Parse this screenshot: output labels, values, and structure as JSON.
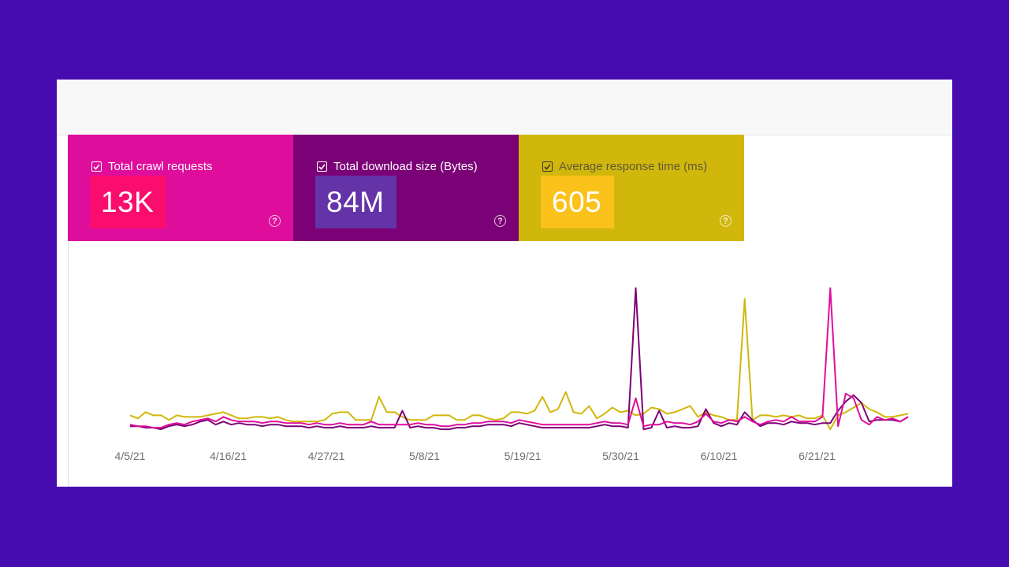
{
  "cards": [
    {
      "label": "Total crawl requests",
      "value": "13K",
      "checked": true
    },
    {
      "label": "Total download size (Bytes)",
      "value": "84M",
      "checked": true
    },
    {
      "label": "Average response time (ms)",
      "value": "605",
      "checked": true
    }
  ],
  "help_glyph": "?",
  "colors": {
    "background": "#460cb0",
    "requests": "#df0d9c",
    "download": "#7b0276",
    "response": "#d1b70b"
  },
  "chart_data": {
    "type": "line",
    "x_tick_labels": [
      "4/5/21",
      "4/16/21",
      "4/27/21",
      "5/8/21",
      "5/19/21",
      "5/30/21",
      "6/10/21",
      "6/21/21"
    ],
    "x_range": [
      "4/5/21",
      "7/1/21"
    ],
    "y_range": [
      0,
      100
    ],
    "grid": false,
    "legend": "top cards",
    "series": [
      {
        "name": "Total crawl requests",
        "color": "#df0d9c",
        "values": [
          7,
          6,
          6,
          5,
          5,
          7,
          8,
          7,
          9,
          10,
          11,
          9,
          12,
          10,
          9,
          9,
          9,
          8,
          9,
          9,
          8,
          8,
          8,
          7,
          8,
          7,
          7,
          8,
          7,
          7,
          7,
          9,
          7,
          7,
          7,
          7,
          7,
          8,
          7,
          7,
          6,
          6,
          7,
          7,
          8,
          8,
          9,
          9,
          9,
          8,
          10,
          9,
          8,
          7,
          7,
          7,
          7,
          7,
          7,
          7,
          8,
          9,
          8,
          8,
          7,
          24,
          6,
          7,
          7,
          9,
          8,
          8,
          7,
          9,
          14,
          9,
          8,
          10,
          9,
          12,
          9,
          7,
          9,
          10,
          9,
          12,
          9,
          9,
          9,
          12,
          95,
          6,
          27,
          24,
          10,
          7,
          12,
          10,
          11,
          9,
          12
        ]
      },
      {
        "name": "Total download size (Bytes)",
        "color": "#7b0276",
        "values": [
          6,
          6,
          5,
          5,
          4,
          6,
          7,
          6,
          7,
          9,
          10,
          7,
          9,
          7,
          8,
          7,
          7,
          6,
          7,
          7,
          6,
          6,
          6,
          5,
          6,
          5,
          5,
          6,
          5,
          5,
          5,
          6,
          5,
          5,
          5,
          16,
          5,
          6,
          5,
          5,
          4,
          4,
          5,
          5,
          6,
          6,
          7,
          7,
          7,
          6,
          8,
          7,
          6,
          5,
          5,
          5,
          5,
          5,
          5,
          5,
          6,
          7,
          6,
          6,
          5,
          95,
          4,
          5,
          16,
          5,
          6,
          5,
          5,
          6,
          17,
          8,
          6,
          8,
          7,
          15,
          10,
          6,
          8,
          8,
          7,
          9,
          8,
          8,
          7,
          8,
          8,
          16,
          22,
          26,
          21,
          9,
          10,
          10,
          10,
          9,
          12
        ]
      },
      {
        "name": "Average response time (ms)",
        "color": "#d1b70b",
        "values": [
          13,
          11,
          15,
          13,
          13,
          10,
          13,
          12,
          12,
          12,
          13,
          14,
          15,
          13,
          11,
          11,
          12,
          12,
          11,
          12,
          10,
          9,
          9,
          9,
          9,
          10,
          14,
          15,
          15,
          10,
          10,
          10,
          25,
          15,
          15,
          12,
          10,
          10,
          10,
          13,
          13,
          13,
          10,
          10,
          13,
          13,
          11,
          10,
          11,
          15,
          15,
          14,
          16,
          25,
          15,
          17,
          28,
          15,
          14,
          19,
          11,
          14,
          18,
          15,
          16,
          13,
          14,
          18,
          17,
          14,
          15,
          17,
          19,
          12,
          15,
          13,
          12,
          10,
          10,
          88,
          10,
          13,
          13,
          12,
          13,
          12,
          13,
          11,
          11,
          13,
          4,
          13,
          15,
          18,
          21,
          17,
          15,
          12,
          12,
          13,
          14
        ]
      }
    ]
  }
}
